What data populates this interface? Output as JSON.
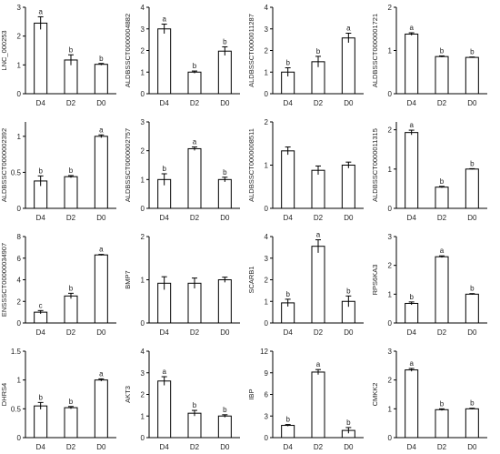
{
  "figure": {
    "background": "#ffffff",
    "bar_fill": "#ffffff",
    "bar_stroke": "#000000"
  },
  "chart_data": [
    {
      "type": "bar",
      "ylabel": "LNC_000253",
      "categories": [
        "D4",
        "D2",
        "D0"
      ],
      "values": [
        2.45,
        1.17,
        1.02
      ],
      "errors": [
        0.22,
        0.18,
        0.03
      ],
      "letters": [
        "a",
        "b",
        "b"
      ],
      "ylim": [
        0,
        3
      ],
      "yticks": [
        0,
        1,
        2,
        3
      ]
    },
    {
      "type": "bar",
      "ylabel": "ALDBSSCT0000004882",
      "categories": [
        "D4",
        "D2",
        "D0"
      ],
      "values": [
        3.0,
        1.0,
        1.97
      ],
      "errors": [
        0.22,
        0.05,
        0.2
      ],
      "letters": [
        "a",
        "b",
        "b"
      ],
      "ylim": [
        0,
        4
      ],
      "yticks": [
        0,
        1,
        2,
        3,
        4
      ]
    },
    {
      "type": "bar",
      "ylabel": "ALDBSSCT0000011287",
      "categories": [
        "D4",
        "D2",
        "D0"
      ],
      "values": [
        1.0,
        1.48,
        2.58
      ],
      "errors": [
        0.2,
        0.25,
        0.22
      ],
      "letters": [
        "b",
        "b",
        "a"
      ],
      "ylim": [
        0,
        4
      ],
      "yticks": [
        0,
        1,
        2,
        3,
        4
      ]
    },
    {
      "type": "bar",
      "ylabel": "ALDBSSCT0000001721",
      "categories": [
        "D4",
        "D2",
        "D0"
      ],
      "values": [
        1.38,
        0.86,
        0.84
      ],
      "errors": [
        0.03,
        0.015,
        0.01
      ],
      "letters": [
        "a",
        "b",
        "b"
      ],
      "ylim": [
        0,
        2
      ],
      "yticks": [
        0,
        1,
        2
      ]
    },
    {
      "type": "bar",
      "ylabel": "ALDBSSCT0000002392",
      "categories": [
        "D4",
        "D2",
        "D0"
      ],
      "values": [
        0.38,
        0.44,
        1.0
      ],
      "errors": [
        0.07,
        0.015,
        0.02
      ],
      "letters": [
        "b",
        "b",
        "a"
      ],
      "ylim": [
        0,
        1.2
      ],
      "yticks": [
        0,
        0.5,
        1
      ]
    },
    {
      "type": "bar",
      "ylabel": "ALDBSSCT0000002757",
      "categories": [
        "D4",
        "D2",
        "D0"
      ],
      "values": [
        1.0,
        2.07,
        1.0
      ],
      "errors": [
        0.2,
        0.06,
        0.08
      ],
      "letters": [
        "b",
        "a",
        "b"
      ],
      "ylim": [
        0,
        3
      ],
      "yticks": [
        0,
        1,
        2,
        3
      ]
    },
    {
      "type": "bar",
      "ylabel": "ALDBSSCT0000008511",
      "categories": [
        "D4",
        "D2",
        "D0"
      ],
      "values": [
        1.33,
        0.88,
        1.0
      ],
      "errors": [
        0.09,
        0.1,
        0.07
      ],
      "letters": [
        "",
        "",
        ""
      ],
      "ylim": [
        0,
        2
      ],
      "yticks": [
        0,
        1,
        2
      ]
    },
    {
      "type": "bar",
      "ylabel": "ALDBSSCT0000011315",
      "categories": [
        "D4",
        "D2",
        "D0"
      ],
      "values": [
        1.93,
        0.54,
        1.0
      ],
      "errors": [
        0.06,
        0.02,
        0.01
      ],
      "letters": [
        "a",
        "b",
        "b"
      ],
      "ylim": [
        0,
        2.2
      ],
      "yticks": [
        0,
        1,
        2
      ]
    },
    {
      "type": "bar",
      "ylabel": "ENSSSCT00000034907",
      "categories": [
        "D4",
        "D2",
        "D0"
      ],
      "values": [
        1.0,
        2.5,
        6.3
      ],
      "errors": [
        0.15,
        0.25,
        0.05
      ],
      "letters": [
        "c",
        "b",
        "a"
      ],
      "ylim": [
        0,
        8
      ],
      "yticks": [
        0,
        2,
        4,
        6,
        8
      ]
    },
    {
      "type": "bar",
      "ylabel": "BMP7",
      "categories": [
        "D4",
        "D2",
        "D0"
      ],
      "values": [
        0.92,
        0.92,
        1.0
      ],
      "errors": [
        0.15,
        0.12,
        0.06
      ],
      "letters": [
        "",
        "",
        ""
      ],
      "ylim": [
        0,
        2
      ],
      "yticks": [
        0,
        1,
        2
      ]
    },
    {
      "type": "bar",
      "ylabel": "SCARB1",
      "categories": [
        "D4",
        "D2",
        "D0"
      ],
      "values": [
        0.93,
        3.55,
        1.0
      ],
      "errors": [
        0.17,
        0.3,
        0.25
      ],
      "letters": [
        "b",
        "a",
        "b"
      ],
      "ylim": [
        0,
        4
      ],
      "yticks": [
        0,
        1,
        2,
        3,
        4
      ]
    },
    {
      "type": "bar",
      "ylabel": "RPS6KA3",
      "categories": [
        "D4",
        "D2",
        "D0"
      ],
      "values": [
        0.68,
        2.3,
        1.0
      ],
      "errors": [
        0.05,
        0.03,
        0.02
      ],
      "letters": [
        "b",
        "a",
        "b"
      ],
      "ylim": [
        0,
        3
      ],
      "yticks": [
        0,
        1,
        2,
        3
      ]
    },
    {
      "type": "bar",
      "ylabel": "DHRS4",
      "categories": [
        "D4",
        "D2",
        "D0"
      ],
      "values": [
        0.55,
        0.52,
        1.0
      ],
      "errors": [
        0.06,
        0.02,
        0.02
      ],
      "letters": [
        "b",
        "b",
        "a"
      ],
      "ylim": [
        0,
        1.5
      ],
      "yticks": [
        0,
        0.5,
        1,
        1.5
      ]
    },
    {
      "type": "bar",
      "ylabel": "AKT3",
      "categories": [
        "D4",
        "D2",
        "D0"
      ],
      "values": [
        2.62,
        1.13,
        1.0
      ],
      "errors": [
        0.2,
        0.13,
        0.06
      ],
      "letters": [
        "a",
        "b",
        "b"
      ],
      "ylim": [
        0,
        4
      ],
      "yticks": [
        0,
        1,
        2,
        3,
        4
      ]
    },
    {
      "type": "bar",
      "ylabel": "IBP",
      "categories": [
        "D4",
        "D2",
        "D0"
      ],
      "values": [
        1.7,
        9.1,
        1.0
      ],
      "errors": [
        0.12,
        0.35,
        0.4
      ],
      "letters": [
        "b",
        "a",
        "b"
      ],
      "ylim": [
        0,
        12
      ],
      "yticks": [
        0,
        3,
        6,
        9,
        12
      ]
    },
    {
      "type": "bar",
      "ylabel": "CMKK2",
      "categories": [
        "D4",
        "D2",
        "D0"
      ],
      "values": [
        2.35,
        0.97,
        1.0
      ],
      "errors": [
        0.05,
        0.03,
        0.02
      ],
      "letters": [
        "a",
        "b",
        "b"
      ],
      "ylim": [
        0,
        3
      ],
      "yticks": [
        0,
        1,
        2,
        3
      ]
    }
  ]
}
